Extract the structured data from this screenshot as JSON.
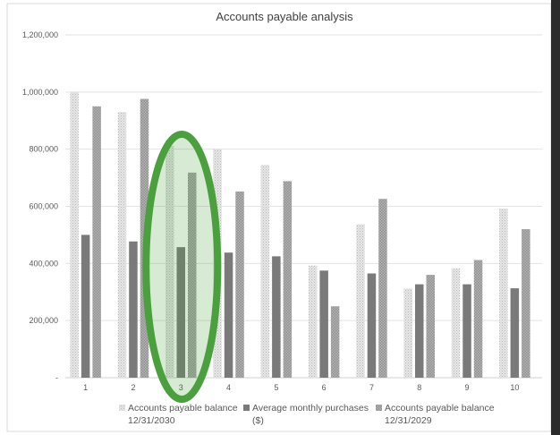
{
  "chart_data": {
    "type": "bar",
    "title": "Accounts payable analysis",
    "categories": [
      "1",
      "2",
      "3",
      "4",
      "5",
      "6",
      "7",
      "8",
      "9",
      "10"
    ],
    "series": [
      {
        "name_lines": [
          "Accounts payable balance",
          "12/31/2030"
        ],
        "values": [
          1000000,
          930000,
          812000,
          800000,
          745000,
          393000,
          537000,
          312000,
          383000,
          592000
        ],
        "color": "#d3d3d3",
        "pattern": "dots"
      },
      {
        "name_lines": [
          "Average monthly purchases",
          "($)"
        ],
        "values": [
          500000,
          477000,
          457000,
          438000,
          425000,
          375000,
          365000,
          327000,
          327000,
          313000
        ],
        "color": "#7a7a7a",
        "pattern": "solid"
      },
      {
        "name_lines": [
          "Accounts payable balance",
          "12/31/2029"
        ],
        "values": [
          950000,
          976000,
          718000,
          652000,
          688000,
          250000,
          626000,
          360000,
          412000,
          520000
        ],
        "color": "#a6a6a6",
        "pattern": "checker"
      }
    ],
    "y_ticks": [
      "-",
      "200,000",
      "400,000",
      "600,000",
      "800,000",
      "1,000,000",
      "1,200,000"
    ],
    "ylim": [
      0,
      1200000
    ],
    "grid": true,
    "legend": "bottom",
    "highlight": {
      "category": "3",
      "shape": "ellipse",
      "color": "#4aa03c"
    }
  }
}
